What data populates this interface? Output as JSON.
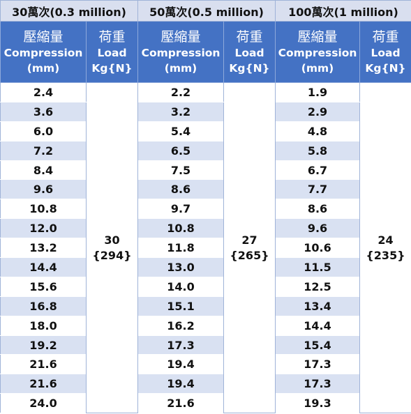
{
  "groups": [
    {
      "title": "30萬次(0.3 million)",
      "compression_header": {
        "cjk": "壓縮量",
        "en": "Compression",
        "unit": "(mm)"
      },
      "load_header": {
        "cjk": "荷重",
        "en": "Load",
        "unit": "Kg{N}"
      },
      "load": {
        "kg": "30",
        "n": "{294}"
      },
      "values": [
        "2.4",
        "3.6",
        "6.0",
        "7.2",
        "8.4",
        "9.6",
        "10.8",
        "12.0",
        "13.2",
        "14.4",
        "15.6",
        "16.8",
        "18.0",
        "19.2",
        "21.6",
        "21.6",
        "24.0"
      ]
    },
    {
      "title": "50萬次(0.5 million)",
      "compression_header": {
        "cjk": "壓縮量",
        "en": "Compression",
        "unit": "(mm)"
      },
      "load_header": {
        "cjk": "荷重",
        "en": "Load",
        "unit": "Kg{N}"
      },
      "load": {
        "kg": "27",
        "n": "{265}"
      },
      "values": [
        "2.2",
        "3.2",
        "5.4",
        "6.5",
        "7.5",
        "8.6",
        "9.7",
        "10.8",
        "11.8",
        "13.0",
        "14.0",
        "15.1",
        "16.2",
        "17.3",
        "19.4",
        "19.4",
        "21.6"
      ]
    },
    {
      "title": "100萬次(1 million)",
      "compression_header": {
        "cjk": "壓縮量",
        "en": "Compression",
        "unit": "(mm)"
      },
      "load_header": {
        "cjk": "荷重",
        "en": "Load",
        "unit": "Kg{N}"
      },
      "load": {
        "kg": "24",
        "n": "{235}"
      },
      "values": [
        "1.9",
        "2.9",
        "4.8",
        "5.8",
        "6.7",
        "7.7",
        "8.6",
        "9.6",
        "10.6",
        "11.5",
        "12.5",
        "13.4",
        "14.4",
        "15.4",
        "17.3",
        "17.3",
        "19.3"
      ]
    }
  ],
  "colors": {
    "header_blue": "#4472c4",
    "title_bg": "#d9dfef",
    "stripe": "#d9e1f2"
  }
}
